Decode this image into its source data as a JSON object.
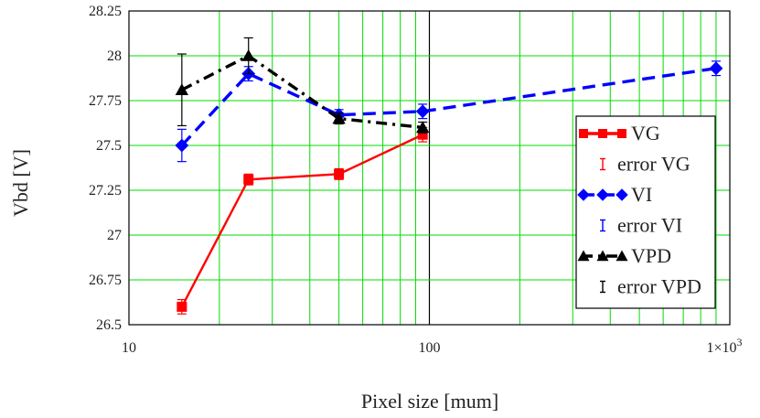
{
  "chart_data": {
    "type": "line",
    "xlabel": "Pixel size [mum]",
    "ylabel": "Vbd [V]",
    "xscale": "log",
    "xlim": [
      10,
      1000
    ],
    "ylim": [
      26.5,
      28.25
    ],
    "grid": true,
    "legend_position": "right",
    "y_ticks": [
      "26.5",
      "26.75",
      "27",
      "27.25",
      "27.5",
      "27.75",
      "28",
      "28.25"
    ],
    "x_ticks": [
      {
        "value": 10,
        "label": "10"
      },
      {
        "value": 100,
        "label": "100"
      },
      {
        "value": 1000,
        "label": "1×10",
        "sup": "3"
      }
    ],
    "series": [
      {
        "name": "VG",
        "color": "#ff0000",
        "marker": "square",
        "dash": "solid",
        "x": [
          15,
          25,
          50,
          95
        ],
        "y": [
          26.6,
          27.31,
          27.34,
          27.56
        ],
        "err": [
          0.04,
          0.03,
          0.03,
          0.04
        ]
      },
      {
        "name": "VI",
        "color": "#0000ff",
        "marker": "diamond",
        "dash": "dashed",
        "x": [
          15,
          25,
          50,
          95,
          900
        ],
        "y": [
          27.5,
          27.9,
          27.67,
          27.69,
          27.93
        ],
        "err": [
          0.09,
          0.04,
          0.03,
          0.04,
          0.04
        ]
      },
      {
        "name": "VPD",
        "color": "#000000",
        "marker": "triangle",
        "dash": "dashdot",
        "x": [
          15,
          25,
          50,
          95
        ],
        "y": [
          27.81,
          28.0,
          27.65,
          27.6
        ],
        "err": [
          0.2,
          0.1,
          0.03,
          0.03
        ]
      }
    ],
    "legend": [
      {
        "label": "VG",
        "series": 0,
        "kind": "line"
      },
      {
        "label": "error VG",
        "series": 0,
        "kind": "error"
      },
      {
        "label": "VI",
        "series": 1,
        "kind": "line"
      },
      {
        "label": "error VI",
        "series": 1,
        "kind": "error"
      },
      {
        "label": "VPD",
        "series": 2,
        "kind": "line"
      },
      {
        "label": "error VPD",
        "series": 2,
        "kind": "error"
      }
    ]
  }
}
